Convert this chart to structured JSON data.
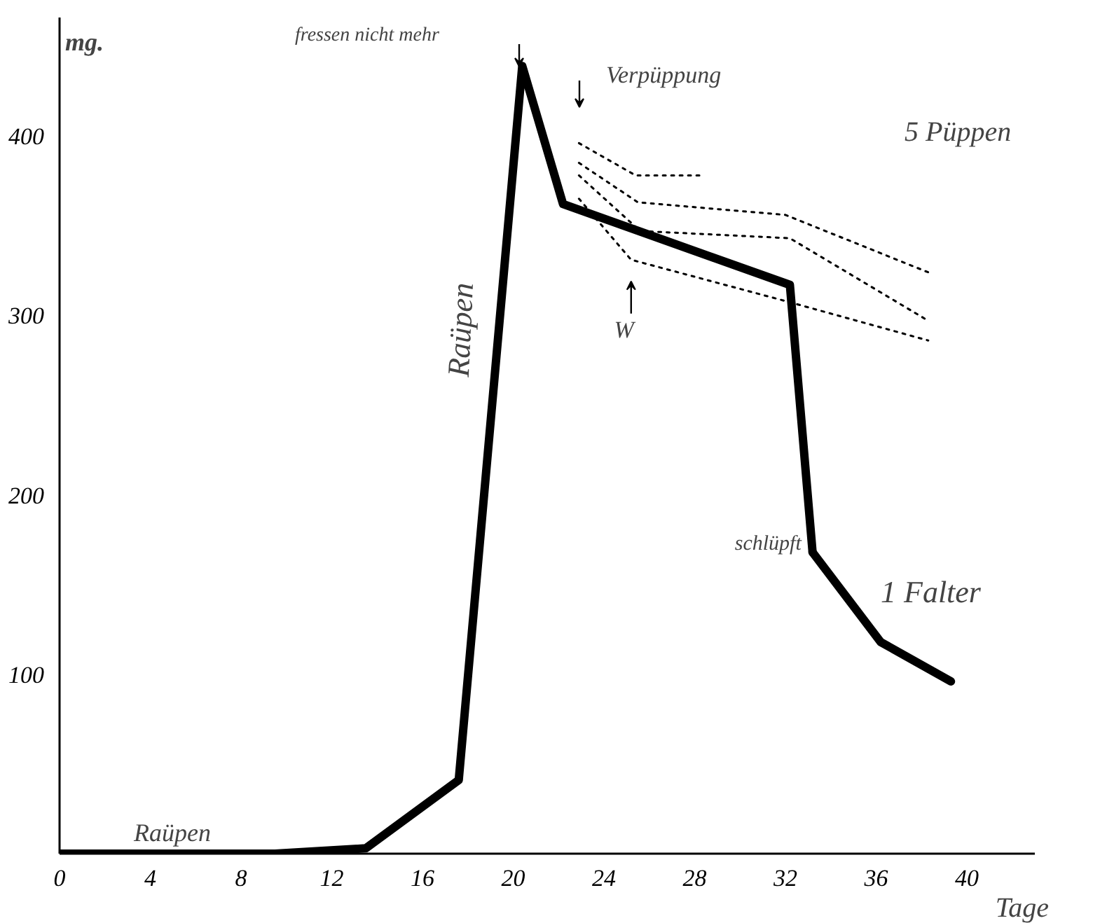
{
  "chart_data": {
    "type": "line",
    "xlabel": "Tage",
    "ylabel": "mg.",
    "xlim": [
      0,
      43
    ],
    "ylim": [
      0,
      466
    ],
    "xticks": [
      0,
      4,
      8,
      12,
      16,
      20,
      24,
      28,
      32,
      36,
      40
    ],
    "yticks": [
      100,
      200,
      300,
      400
    ],
    "grid": false,
    "marker": "none",
    "series": [
      {
        "color": "#000000",
        "line_style": "solid",
        "x": [
          0,
          9.5,
          13.5,
          17.6,
          20.4,
          22.2,
          32.2,
          33.2
        ],
        "values": [
          0,
          0,
          3,
          41,
          439,
          362,
          317,
          168
        ]
      },
      {
        "color": "#000000",
        "line_style": "solid",
        "x": [
          33.2,
          36.2,
          39.3
        ],
        "values": [
          168,
          118,
          96
        ]
      },
      {
        "color": "#000000",
        "line_style": "dotted",
        "x": [
          22.9,
          25.4,
          28.3
        ],
        "values": [
          396,
          378,
          378
        ]
      },
      {
        "color": "#000000",
        "line_style": "dotted",
        "x": [
          22.9,
          25.5,
          32.0,
          38.3
        ],
        "values": [
          385,
          363,
          356,
          324
        ]
      },
      {
        "color": "#000000",
        "line_style": "dotted",
        "x": [
          22.9,
          25.6,
          32.2,
          38.3
        ],
        "values": [
          378,
          347,
          343,
          297
        ]
      },
      {
        "color": "#000000",
        "line_style": "dotted",
        "x": [
          22.9,
          25.2,
          32.0,
          38.3
        ],
        "values": [
          365,
          331,
          308,
          286
        ]
      }
    ],
    "annotations": [
      "fressen nicht mehr",
      "Verpüppung",
      "5 Püppen",
      {
        "text": "W",
        "x": 25.2,
        "y": 331
      },
      "Raüpen",
      "Raüpen",
      {
        "text": "schlüpft",
        "x": 33.2,
        "y": 168
      },
      "1 Falter"
    ]
  }
}
